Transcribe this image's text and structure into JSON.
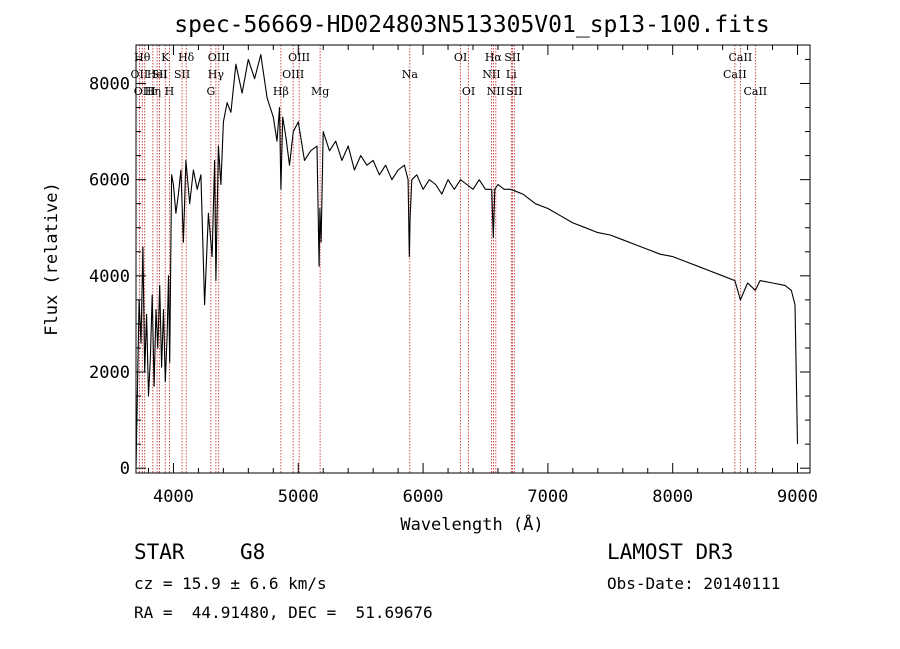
{
  "chart_data": {
    "type": "line",
    "title": "spec-56669-HD024803N513305V01_sp13-100.fits",
    "xlabel": "Wavelength (Å)",
    "ylabel": "Flux (relative)",
    "xlim": [
      3700,
      9100
    ],
    "ylim": [
      -100,
      8800
    ],
    "xticks": [
      4000,
      5000,
      6000,
      7000,
      8000,
      9000
    ],
    "yticks": [
      0,
      2000,
      4000,
      6000,
      8000
    ],
    "series": [
      {
        "name": "spectrum",
        "x": [
          3700,
          3712,
          3725,
          3740,
          3755,
          3770,
          3785,
          3800,
          3815,
          3830,
          3845,
          3860,
          3875,
          3890,
          3905,
          3920,
          3935,
          3950,
          3960,
          3970,
          3985,
          4000,
          4020,
          4040,
          4060,
          4080,
          4100,
          4130,
          4160,
          4190,
          4220,
          4250,
          4280,
          4310,
          4330,
          4340,
          4360,
          4380,
          4400,
          4430,
          4460,
          4500,
          4550,
          4600,
          4650,
          4700,
          4750,
          4800,
          4830,
          4850,
          4861,
          4875,
          4900,
          4930,
          4960,
          5000,
          5050,
          5100,
          5150,
          5167,
          5173,
          5183,
          5200,
          5250,
          5300,
          5350,
          5400,
          5450,
          5500,
          5550,
          5600,
          5650,
          5700,
          5750,
          5800,
          5850,
          5880,
          5890,
          5896,
          5910,
          5950,
          6000,
          6050,
          6100,
          6150,
          6200,
          6250,
          6300,
          6350,
          6400,
          6450,
          6500,
          6550,
          6563,
          6575,
          6600,
          6650,
          6700,
          6750,
          6800,
          6900,
          7000,
          7100,
          7200,
          7300,
          7400,
          7500,
          7600,
          7700,
          7800,
          7900,
          8000,
          8100,
          8200,
          8300,
          8400,
          8498,
          8542,
          8600,
          8662,
          8700,
          8800,
          8900,
          8950,
          8980,
          9000
        ],
        "values": [
          0,
          1700,
          3500,
          2600,
          4600,
          2000,
          3200,
          1500,
          2300,
          3600,
          1700,
          3300,
          2500,
          3800,
          2100,
          3300,
          1800,
          2800,
          4000,
          2200,
          6100,
          5900,
          5300,
          5700,
          6200,
          4700,
          6400,
          5500,
          6200,
          5800,
          6100,
          3400,
          5300,
          4400,
          6400,
          3900,
          6700,
          5900,
          7200,
          7600,
          7400,
          8400,
          7800,
          8500,
          8100,
          8600,
          7700,
          7300,
          6800,
          7500,
          5800,
          7300,
          6900,
          6300,
          7000,
          7200,
          6400,
          6600,
          6700,
          4200,
          5400,
          4700,
          7000,
          6600,
          6800,
          6400,
          6700,
          6200,
          6500,
          6300,
          6400,
          6100,
          6300,
          6000,
          6200,
          6300,
          6000,
          4400,
          5200,
          6000,
          6100,
          5800,
          6000,
          5900,
          5700,
          6000,
          5800,
          6000,
          5900,
          5800,
          6000,
          5800,
          5800,
          4800,
          5800,
          5900,
          5800,
          5800,
          5750,
          5700,
          5500,
          5400,
          5250,
          5100,
          5000,
          4900,
          4850,
          4750,
          4650,
          4550,
          4450,
          4400,
          4300,
          4200,
          4100,
          4000,
          3900,
          3500,
          3850,
          3700,
          3900,
          3850,
          3800,
          3700,
          3400,
          500
        ]
      }
    ],
    "emission_lines": [
      {
        "x": 3727,
        "label": "OII",
        "row": 2
      },
      {
        "x": 3750,
        "label": "Hθ",
        "row": 1
      },
      {
        "x": 3770,
        "label": "OIII",
        "row": 3
      },
      {
        "x": 3835,
        "label": "Hη",
        "row": 3
      },
      {
        "x": 3869,
        "label": "HeI",
        "row": 2
      },
      {
        "x": 3889,
        "label": "SII",
        "row": 2
      },
      {
        "x": 3934,
        "label": "K",
        "row": 1
      },
      {
        "x": 3968,
        "label": "H",
        "row": 3
      },
      {
        "x": 4069,
        "label": "SII",
        "row": 2
      },
      {
        "x": 4102,
        "label": "Hδ",
        "row": 1
      },
      {
        "x": 4300,
        "label": "G",
        "row": 3
      },
      {
        "x": 4340,
        "label": "Hγ",
        "row": 2
      },
      {
        "x": 4363,
        "label": "OIII",
        "row": 1
      },
      {
        "x": 4861,
        "label": "Hβ",
        "row": 3
      },
      {
        "x": 4959,
        "label": "OIII",
        "row": 2
      },
      {
        "x": 5007,
        "label": "OIII",
        "row": 1
      },
      {
        "x": 5175,
        "label": "Mg",
        "row": 3
      },
      {
        "x": 5894,
        "label": "Na",
        "row": 2
      },
      {
        "x": 6300,
        "label": "OI",
        "row": 1
      },
      {
        "x": 6364,
        "label": "OI",
        "row": 3
      },
      {
        "x": 6548,
        "label": "NII",
        "row": 2
      },
      {
        "x": 6563,
        "label": "Hα",
        "row": 1
      },
      {
        "x": 6583,
        "label": "NII",
        "row": 3
      },
      {
        "x": 6707,
        "label": "Li",
        "row": 2
      },
      {
        "x": 6716,
        "label": "SII",
        "row": 1
      },
      {
        "x": 6731,
        "label": "SII",
        "row": 3
      },
      {
        "x": 8498,
        "label": "CaII",
        "row": 2
      },
      {
        "x": 8542,
        "label": "CaII",
        "row": 1
      },
      {
        "x": 8662,
        "label": "CaII",
        "row": 3
      }
    ]
  },
  "info": {
    "object_class": "STAR",
    "subclass": "G8",
    "survey": "LAMOST DR3",
    "cz": "cz = 15.9 ± 6.6 km/s",
    "obs_date": "Obs-Date: 20140111",
    "coords": "RA =  44.91480, DEC =  51.69676"
  },
  "colors": {
    "line_marker": "#c02020",
    "spectrum": "#000000",
    "axes": "#000000"
  }
}
